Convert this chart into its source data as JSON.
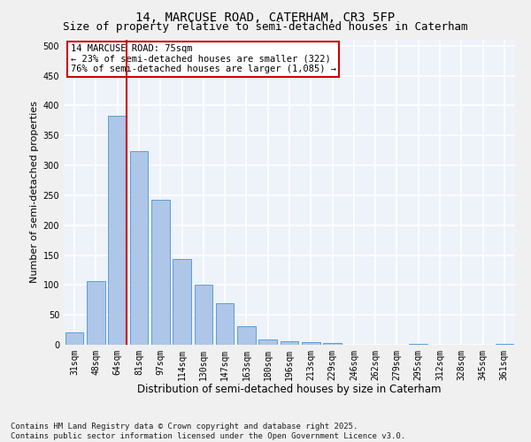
{
  "title1": "14, MARCUSE ROAD, CATERHAM, CR3 5FP",
  "title2": "Size of property relative to semi-detached houses in Caterham",
  "xlabel": "Distribution of semi-detached houses by size in Caterham",
  "ylabel": "Number of semi-detached properties",
  "categories": [
    "31sqm",
    "48sqm",
    "64sqm",
    "81sqm",
    "97sqm",
    "114sqm",
    "130sqm",
    "147sqm",
    "163sqm",
    "180sqm",
    "196sqm",
    "213sqm",
    "229sqm",
    "246sqm",
    "262sqm",
    "279sqm",
    "295sqm",
    "312sqm",
    "328sqm",
    "345sqm",
    "361sqm"
  ],
  "values": [
    20,
    107,
    383,
    324,
    243,
    144,
    101,
    70,
    31,
    9,
    6,
    5,
    3,
    0,
    0,
    0,
    2,
    0,
    0,
    0,
    2
  ],
  "bar_color": "#aec6e8",
  "bar_edge_color": "#5a9fd4",
  "vline_color": "#cc0000",
  "annotation_text": "14 MARCUSE ROAD: 75sqm\n← 23% of semi-detached houses are smaller (322)\n76% of semi-detached houses are larger (1,085) →",
  "annotation_box_edge": "#cc0000",
  "ylim": [
    0,
    510
  ],
  "yticks": [
    0,
    50,
    100,
    150,
    200,
    250,
    300,
    350,
    400,
    450,
    500
  ],
  "background_color": "#eef2f9",
  "grid_color": "#ffffff",
  "footer": "Contains HM Land Registry data © Crown copyright and database right 2025.\nContains public sector information licensed under the Open Government Licence v3.0.",
  "title1_fontsize": 10,
  "title2_fontsize": 9,
  "xlabel_fontsize": 8.5,
  "ylabel_fontsize": 8,
  "tick_fontsize": 7,
  "annotation_fontsize": 7.5,
  "footer_fontsize": 6.5
}
